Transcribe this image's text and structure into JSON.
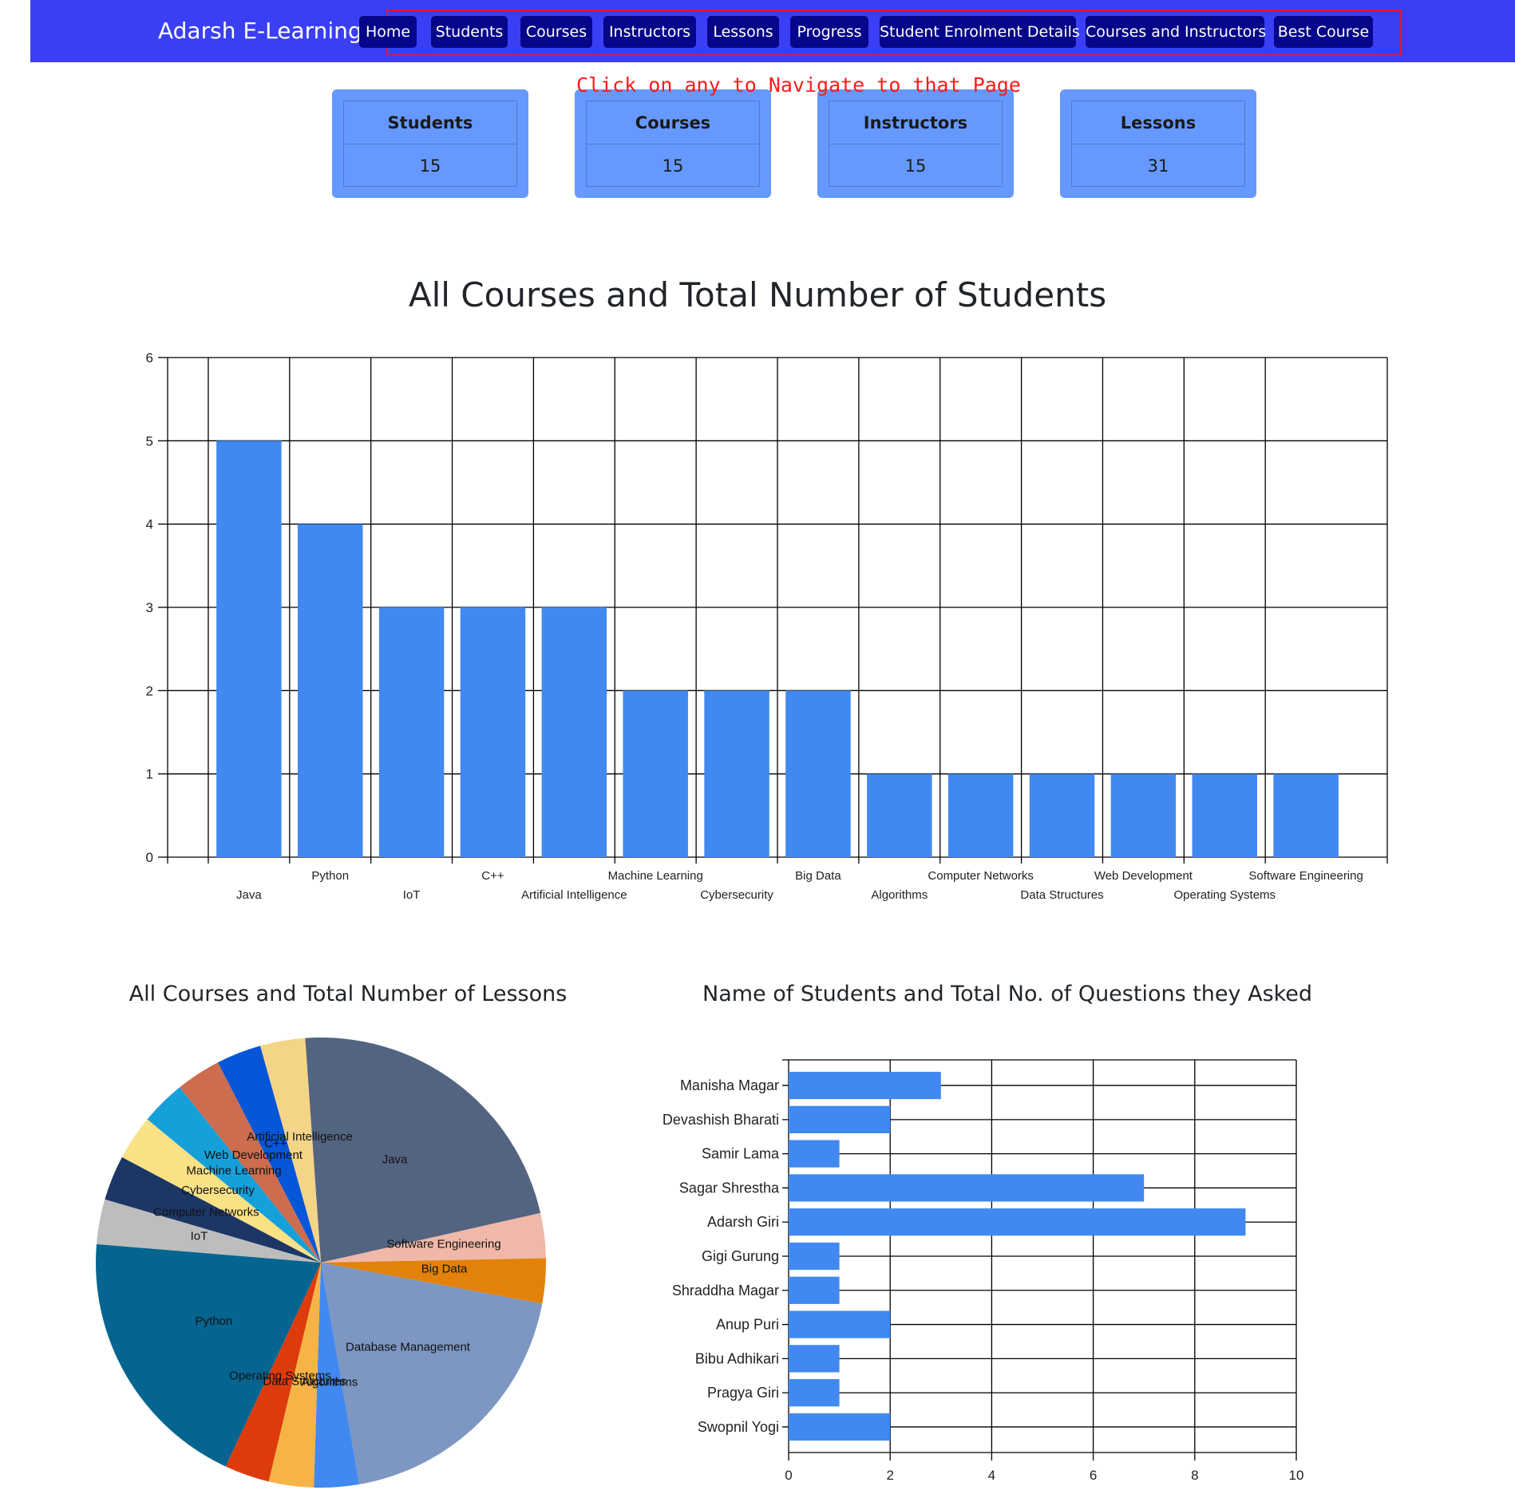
{
  "navbar": {
    "brand": "Adarsh E-Learning",
    "items": [
      "Home",
      "Students",
      "Courses",
      "Instructors",
      "Lessons",
      "Progress",
      "Student Enrolment Details",
      "Courses and Instructors",
      "Best Course"
    ]
  },
  "hint": "Click on any to Navigate to that Page",
  "stats": [
    {
      "label": "Students",
      "value": "15"
    },
    {
      "label": "Courses",
      "value": "15"
    },
    {
      "label": "Instructors",
      "value": "15"
    },
    {
      "label": "Lessons",
      "value": "31"
    }
  ],
  "headings": {
    "main": "All Courses and Total Number of Students",
    "pie": "All Courses and Total Number of Lessons",
    "hbar": "Name of Students and Total No. of Questions they Asked"
  },
  "colors": {
    "navbar": "#3a3ff5",
    "nav_button": "#06068a",
    "nav_outline": "#e0163a",
    "card": "#6699ff",
    "bar": "#4189f0",
    "hint": "#ff1a1a"
  },
  "chart_data": [
    {
      "type": "bar",
      "title": "All Courses and Total Number of Students",
      "categories": [
        "Java",
        "Python",
        "IoT",
        "C++",
        "Artificial Intelligence",
        "Machine Learning",
        "Cybersecurity",
        "Big Data",
        "Algorithms",
        "Computer Networks",
        "Data Structures",
        "Web Development",
        "Operating Systems",
        "Software Engineering"
      ],
      "values": [
        5,
        4,
        3,
        3,
        3,
        2,
        2,
        2,
        1,
        1,
        1,
        1,
        1,
        1
      ],
      "ylim": [
        0,
        6
      ],
      "yticks": [
        0,
        1,
        2,
        3,
        4,
        5,
        6
      ],
      "grid": true,
      "legend": "none"
    },
    {
      "type": "pie",
      "title": "All Courses and Total Number of Lessons",
      "slices": [
        {
          "label": "Java",
          "value": 7,
          "color": "#536480"
        },
        {
          "label": "Software Engineering",
          "value": 1,
          "color": "#f0b8a8"
        },
        {
          "label": "Big Data",
          "value": 1,
          "color": "#e2820b"
        },
        {
          "label": "Database Management",
          "value": 6,
          "color": "#7d97c2"
        },
        {
          "label": "Algorithms",
          "value": 1,
          "color": "#4189f0"
        },
        {
          "label": "Data Structures",
          "value": 1,
          "color": "#f7b446"
        },
        {
          "label": "Operating Systems",
          "value": 1,
          "color": "#de3b0d"
        },
        {
          "label": "Python",
          "value": 6,
          "color": "#066590"
        },
        {
          "label": "IoT",
          "value": 1,
          "color": "#bdbdbd"
        },
        {
          "label": "Computer Networks",
          "value": 1,
          "color": "#1c3766"
        },
        {
          "label": "Cybersecurity",
          "value": 1,
          "color": "#fbe185"
        },
        {
          "label": "Machine Learning",
          "value": 1,
          "color": "#16a0d9"
        },
        {
          "label": "Web Development",
          "value": 1,
          "color": "#cd6c4e"
        },
        {
          "label": "C++",
          "value": 1,
          "color": "#0656d8"
        },
        {
          "label": "Artificial Intelligence",
          "value": 1,
          "color": "#f4d487"
        }
      ],
      "legend": "none"
    },
    {
      "type": "bar",
      "orientation": "horizontal",
      "title": "Name of Students and Total No. of Questions they Asked",
      "categories": [
        "Manisha Magar",
        "Devashish Bharati",
        "Samir Lama",
        "Sagar Shrestha",
        "Adarsh Giri",
        "Gigi Gurung",
        "Shraddha Magar",
        "Anup Puri",
        "Bibu Adhikari",
        "Pragya Giri",
        "Swopnil Yogi"
      ],
      "values": [
        3,
        2,
        1,
        7,
        9,
        1,
        1,
        2,
        1,
        1,
        2
      ],
      "xlim": [
        0,
        10
      ],
      "xticks": [
        0,
        2,
        4,
        6,
        8,
        10
      ],
      "grid": true,
      "legend": "none"
    }
  ]
}
